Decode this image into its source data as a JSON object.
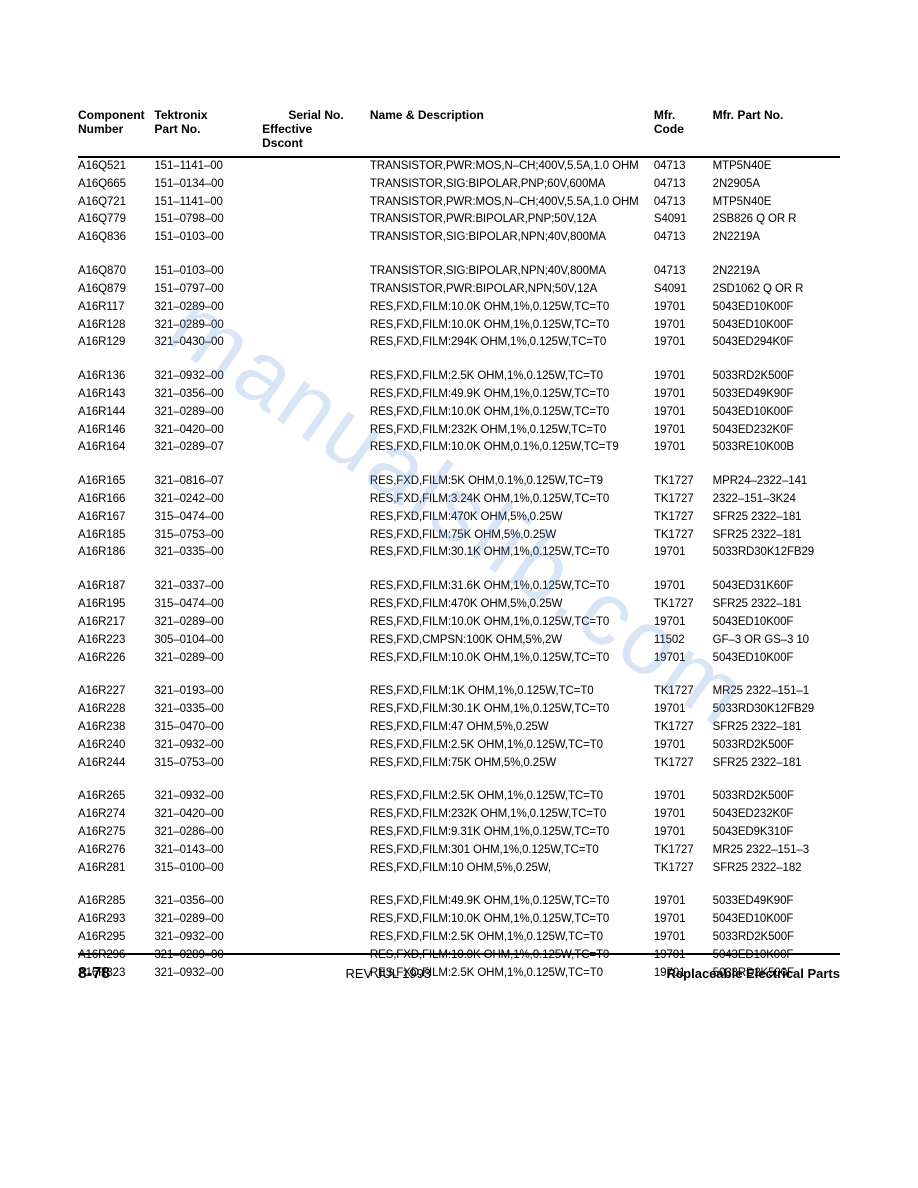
{
  "watermark": "manualslib.com",
  "headers": {
    "component1": "Component",
    "component2": "Number",
    "tektronix1": "Tektronix",
    "tektronix2": "Part No.",
    "serial1": "Serial No.",
    "serial2a": "Effective",
    "serial2b": "Dscont",
    "desc": "Name & Description",
    "mfr1": "Mfr.",
    "mfr2": "Code",
    "mfrpart": "Mfr. Part No."
  },
  "groups": [
    [
      {
        "comp": "A16Q521",
        "part": "151–1141–00",
        "desc": "TRANSISTOR,PWR:MOS,N–CH;400V,5.5A,1.0 OHM",
        "mfr": "04713",
        "mfrpart": "MTP5N40E"
      },
      {
        "comp": "A16Q665",
        "part": "151–0134–00",
        "desc": "TRANSISTOR,SIG:BIPOLAR,PNP;60V,600MA",
        "mfr": "04713",
        "mfrpart": "2N2905A"
      },
      {
        "comp": "A16Q721",
        "part": "151–1141–00",
        "desc": "TRANSISTOR,PWR:MOS,N–CH;400V,5.5A,1.0 OHM",
        "mfr": "04713",
        "mfrpart": "MTP5N40E"
      },
      {
        "comp": "A16Q779",
        "part": "151–0798–00",
        "desc": "TRANSISTOR,PWR:BIPOLAR,PNP;50V,12A",
        "mfr": "S4091",
        "mfrpart": "2SB826 Q OR R"
      },
      {
        "comp": "A16Q836",
        "part": "151–0103–00",
        "desc": "TRANSISTOR,SIG:BIPOLAR,NPN;40V,800MA",
        "mfr": "04713",
        "mfrpart": "2N2219A"
      }
    ],
    [
      {
        "comp": "A16Q870",
        "part": "151–0103–00",
        "desc": "TRANSISTOR,SIG:BIPOLAR,NPN;40V,800MA",
        "mfr": "04713",
        "mfrpart": "2N2219A"
      },
      {
        "comp": "A16Q879",
        "part": "151–0797–00",
        "desc": "TRANSISTOR,PWR:BIPOLAR,NPN;50V,12A",
        "mfr": "S4091",
        "mfrpart": "2SD1062 Q OR R"
      },
      {
        "comp": "A16R117",
        "part": "321–0289–00",
        "desc": "RES,FXD,FILM:10.0K OHM,1%,0.125W,TC=T0",
        "mfr": "19701",
        "mfrpart": "5043ED10K00F"
      },
      {
        "comp": "A16R128",
        "part": "321–0289–00",
        "desc": "RES,FXD,FILM:10.0K OHM,1%,0.125W,TC=T0",
        "mfr": "19701",
        "mfrpart": "5043ED10K00F"
      },
      {
        "comp": "A16R129",
        "part": "321–0430–00",
        "desc": "RES,FXD,FILM:294K OHM,1%,0.125W,TC=T0",
        "mfr": "19701",
        "mfrpart": "5043ED294K0F"
      }
    ],
    [
      {
        "comp": "A16R136",
        "part": "321–0932–00",
        "desc": "RES,FXD,FILM:2.5K OHM,1%,0.125W,TC=T0",
        "mfr": "19701",
        "mfrpart": "5033RD2K500F"
      },
      {
        "comp": "A16R143",
        "part": "321–0356–00",
        "desc": "RES,FXD,FILM:49.9K OHM,1%,0.125W,TC=T0",
        "mfr": "19701",
        "mfrpart": "5033ED49K90F"
      },
      {
        "comp": "A16R144",
        "part": "321–0289–00",
        "desc": "RES,FXD,FILM:10.0K OHM,1%,0.125W,TC=T0",
        "mfr": "19701",
        "mfrpart": "5043ED10K00F"
      },
      {
        "comp": "A16R146",
        "part": "321–0420–00",
        "desc": "RES,FXD,FILM:232K OHM,1%,0.125W,TC=T0",
        "mfr": "19701",
        "mfrpart": "5043ED232K0F"
      },
      {
        "comp": "A16R164",
        "part": "321–0289–07",
        "desc": "RES,FXD,FILM:10.0K OHM,0.1%,0.125W,TC=T9",
        "mfr": "19701",
        "mfrpart": "5033RE10K00B"
      }
    ],
    [
      {
        "comp": "A16R165",
        "part": "321–0816–07",
        "desc": "RES,FXD,FILM:5K OHM,0.1%,0.125W,TC=T9",
        "mfr": "TK1727",
        "mfrpart": "MPR24–2322–141"
      },
      {
        "comp": "A16R166",
        "part": "321–0242–00",
        "desc": "RES,FXD,FILM:3.24K OHM,1%,0.125W,TC=T0",
        "mfr": "TK1727",
        "mfrpart": "2322–151–3K24"
      },
      {
        "comp": "A16R167",
        "part": "315–0474–00",
        "desc": "RES,FXD,FILM:470K OHM,5%,0.25W",
        "mfr": "TK1727",
        "mfrpart": "SFR25 2322–181"
      },
      {
        "comp": "A16R185",
        "part": "315–0753–00",
        "desc": "RES,FXD,FILM:75K OHM,5%,0.25W",
        "mfr": "TK1727",
        "mfrpart": "SFR25 2322–181"
      },
      {
        "comp": "A16R186",
        "part": "321–0335–00",
        "desc": "RES,FXD,FILM:30.1K OHM,1%,0.125W,TC=T0",
        "mfr": "19701",
        "mfrpart": "5033RD30K12FB29"
      }
    ],
    [
      {
        "comp": "A16R187",
        "part": "321–0337–00",
        "desc": "RES,FXD,FILM:31.6K OHM,1%,0.125W,TC=T0",
        "mfr": "19701",
        "mfrpart": "5043ED31K60F"
      },
      {
        "comp": "A16R195",
        "part": "315–0474–00",
        "desc": "RES,FXD,FILM:470K OHM,5%,0.25W",
        "mfr": "TK1727",
        "mfrpart": "SFR25 2322–181"
      },
      {
        "comp": "A16R217",
        "part": "321–0289–00",
        "desc": "RES,FXD,FILM:10.0K OHM,1%,0.125W,TC=T0",
        "mfr": "19701",
        "mfrpart": "5043ED10K00F"
      },
      {
        "comp": "A16R223",
        "part": "305–0104–00",
        "desc": "RES,FXD,CMPSN:100K OHM,5%,2W",
        "mfr": "11502",
        "mfrpart": "GF–3 OR GS–3 10"
      },
      {
        "comp": "A16R226",
        "part": "321–0289–00",
        "desc": "RES,FXD,FILM:10.0K OHM,1%,0.125W,TC=T0",
        "mfr": "19701",
        "mfrpart": "5043ED10K00F"
      }
    ],
    [
      {
        "comp": "A16R227",
        "part": "321–0193–00",
        "desc": "RES,FXD,FILM:1K OHM,1%,0.125W,TC=T0",
        "mfr": "TK1727",
        "mfrpart": "MR25 2322–151–1"
      },
      {
        "comp": "A16R228",
        "part": "321–0335–00",
        "desc": "RES,FXD,FILM:30.1K OHM,1%,0.125W,TC=T0",
        "mfr": "19701",
        "mfrpart": "5033RD30K12FB29"
      },
      {
        "comp": "A16R238",
        "part": "315–0470–00",
        "desc": "RES,FXD,FILM:47 OHM,5%,0.25W",
        "mfr": "TK1727",
        "mfrpart": "SFR25 2322–181"
      },
      {
        "comp": "A16R240",
        "part": "321–0932–00",
        "desc": "RES,FXD,FILM:2.5K OHM,1%,0.125W,TC=T0",
        "mfr": "19701",
        "mfrpart": "5033RD2K500F"
      },
      {
        "comp": "A16R244",
        "part": "315–0753–00",
        "desc": "RES,FXD,FILM:75K OHM,5%,0.25W",
        "mfr": "TK1727",
        "mfrpart": "SFR25 2322–181"
      }
    ],
    [
      {
        "comp": "A16R265",
        "part": "321–0932–00",
        "desc": "RES,FXD,FILM:2.5K OHM,1%,0.125W,TC=T0",
        "mfr": "19701",
        "mfrpart": "5033RD2K500F"
      },
      {
        "comp": "A16R274",
        "part": "321–0420–00",
        "desc": "RES,FXD,FILM:232K OHM,1%,0.125W,TC=T0",
        "mfr": "19701",
        "mfrpart": "5043ED232K0F"
      },
      {
        "comp": "A16R275",
        "part": "321–0286–00",
        "desc": "RES,FXD,FILM:9.31K OHM,1%,0.125W,TC=T0",
        "mfr": "19701",
        "mfrpart": "5043ED9K310F"
      },
      {
        "comp": "A16R276",
        "part": "321–0143–00",
        "desc": "RES,FXD,FILM:301 OHM,1%,0.125W,TC=T0",
        "mfr": "TK1727",
        "mfrpart": "MR25 2322–151–3"
      },
      {
        "comp": "A16R281",
        "part": "315–0100–00",
        "desc": "RES,FXD,FILM:10 OHM,5%,0.25W,",
        "mfr": "TK1727",
        "mfrpart": "SFR25 2322–182"
      }
    ],
    [
      {
        "comp": "A16R285",
        "part": "321–0356–00",
        "desc": "RES,FXD,FILM:49.9K OHM,1%,0.125W,TC=T0",
        "mfr": "19701",
        "mfrpart": "5033ED49K90F"
      },
      {
        "comp": "A16R293",
        "part": "321–0289–00",
        "desc": "RES,FXD,FILM:10.0K OHM,1%,0.125W,TC=T0",
        "mfr": "19701",
        "mfrpart": "5043ED10K00F"
      },
      {
        "comp": "A16R295",
        "part": "321–0932–00",
        "desc": "RES,FXD,FILM:2.5K OHM,1%,0.125W,TC=T0",
        "mfr": "19701",
        "mfrpart": "5033RD2K500F"
      },
      {
        "comp": "A16R296",
        "part": "321–0289–00",
        "desc": "RES,FXD,FILM:10.0K OHM,1%,0.125W,TC=T0",
        "mfr": "19701",
        "mfrpart": "5043ED10K00F"
      },
      {
        "comp": "A16R323",
        "part": "321–0932–00",
        "desc": "RES,FXD,FILM:2.5K OHM,1%,0.125W,TC=T0",
        "mfr": "19701",
        "mfrpart": "5033RD2K500F"
      }
    ]
  ],
  "footer": {
    "left": "8-78",
    "center": "REV JUL 1993",
    "right": "Replaceable Electrical Parts"
  }
}
